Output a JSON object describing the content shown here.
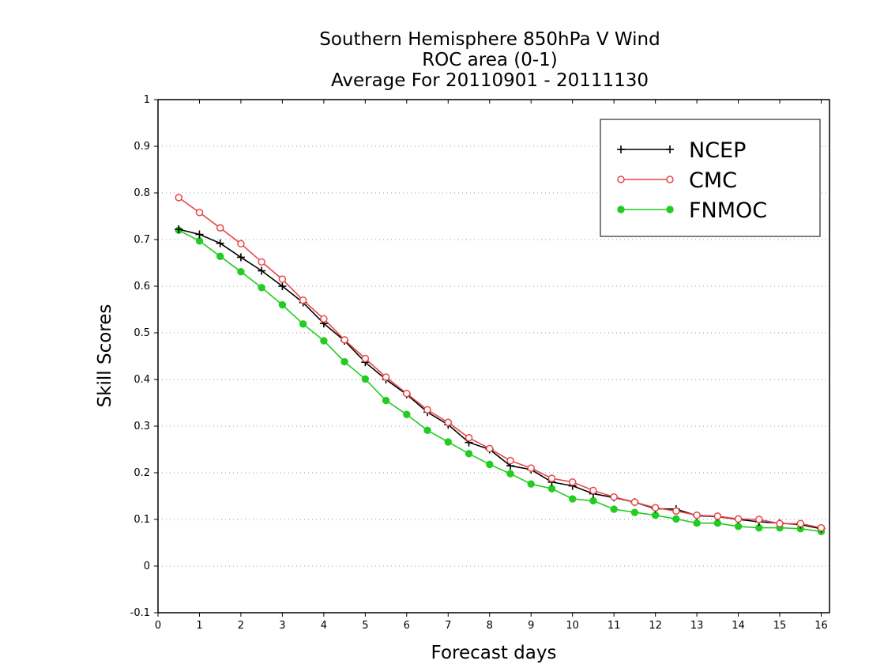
{
  "chart_data": {
    "type": "line",
    "title": [
      "Southern Hemisphere 850hPa V Wind",
      "ROC area (0-1)",
      "Average For 20110901 - 20111130"
    ],
    "xlabel": "Forecast days",
    "ylabel": "Skill Scores",
    "xlim": [
      0,
      16.2
    ],
    "ylim": [
      -0.1,
      1
    ],
    "xticks": [
      "0",
      "1",
      "2",
      "3",
      "4",
      "5",
      "6",
      "7",
      "8",
      "9",
      "10",
      "11",
      "12",
      "13",
      "14",
      "15",
      "16"
    ],
    "yticks": [
      "-0.1",
      "0",
      "0.1",
      "0.2",
      "0.3",
      "0.4",
      "0.5",
      "0.6",
      "0.7",
      "0.8",
      "0.9",
      "1"
    ],
    "grid": "horizontal dotted",
    "legend_position": "top-right",
    "x": [
      0.5,
      1,
      1.5,
      2,
      2.5,
      3,
      3.5,
      4,
      4.5,
      5,
      5.5,
      6,
      6.5,
      7,
      7.5,
      8,
      8.5,
      9,
      9.5,
      10,
      10.5,
      11,
      11.5,
      12,
      12.5,
      13,
      13.5,
      14,
      14.5,
      15,
      15.5,
      16
    ],
    "series": [
      {
        "name": "NCEP",
        "color": "#000000",
        "marker": "plus",
        "values": [
          0.722,
          0.711,
          0.692,
          0.662,
          0.633,
          0.6,
          0.565,
          0.52,
          0.483,
          0.437,
          0.4,
          0.368,
          0.33,
          0.303,
          0.265,
          0.25,
          0.215,
          0.207,
          0.18,
          0.172,
          0.155,
          0.147,
          0.137,
          0.123,
          0.122,
          0.108,
          0.106,
          0.1,
          0.095,
          0.092,
          0.089,
          0.08
        ]
      },
      {
        "name": "CMC",
        "color": "#e8474a",
        "marker": "open-circle",
        "values": [
          0.79,
          0.758,
          0.725,
          0.691,
          0.652,
          0.615,
          0.57,
          0.53,
          0.485,
          0.445,
          0.405,
          0.37,
          0.335,
          0.308,
          0.275,
          0.252,
          0.226,
          0.21,
          0.188,
          0.18,
          0.162,
          0.148,
          0.137,
          0.125,
          0.118,
          0.109,
          0.107,
          0.101,
          0.1,
          0.091,
          0.091,
          0.082
        ]
      },
      {
        "name": "FNMOC",
        "color": "#22cc22",
        "marker": "filled-circle",
        "values": [
          0.72,
          0.697,
          0.664,
          0.631,
          0.597,
          0.56,
          0.519,
          0.483,
          0.438,
          0.401,
          0.355,
          0.325,
          0.291,
          0.266,
          0.241,
          0.218,
          0.198,
          0.176,
          0.166,
          0.144,
          0.14,
          0.122,
          0.115,
          0.109,
          0.101,
          0.092,
          0.092,
          0.085,
          0.082,
          0.082,
          0.08,
          0.074
        ]
      }
    ]
  }
}
